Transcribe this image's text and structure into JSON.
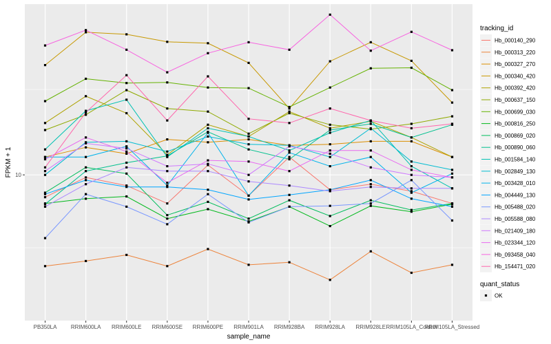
{
  "chart_data": {
    "type": "line",
    "xlabel": "sample_name",
    "ylabel": "FPKM + 1",
    "y_scale": "log",
    "yticks": [
      10
    ],
    "ylim": [
      3.2,
      38
    ],
    "grid": true,
    "legend_placement": "right",
    "categories": [
      "PB350LA",
      "RRIM600LA",
      "RRIM600LE",
      "RRIM600SE",
      "RRIM600PE",
      "RRIM901LA",
      "RRIM928BA",
      "RRIM928LA",
      "RRIM928LE",
      "RRIM105LA_Control",
      "RRIM105LA_Stressed"
    ],
    "series": [
      {
        "name": "Hb_000140_290",
        "color": "#F8766D",
        "values": [
          8.4,
          9.8,
          9.2,
          8.0,
          10.8,
          8.5,
          11.5,
          8.9,
          9.3,
          8.8,
          8.0
        ]
      },
      {
        "name": "Hb_000313_220",
        "color": "#EC8239",
        "values": [
          4.9,
          5.1,
          5.35,
          4.9,
          5.6,
          4.95,
          5.05,
          4.4,
          5.5,
          4.65,
          4.95
        ]
      },
      {
        "name": "Hb_000327_270",
        "color": "#DB8E00",
        "values": [
          11.5,
          12.4,
          11.8,
          13.2,
          12.9,
          13.2,
          12.6,
          12.7,
          13.0,
          13.0,
          11.5
        ]
      },
      {
        "name": "Hb_000340_420",
        "color": "#C79800",
        "values": [
          23.6,
          30.5,
          30.0,
          28.3,
          28.0,
          24.0,
          16.8,
          24.3,
          28.2,
          24.4,
          17.6
        ]
      },
      {
        "name": "Hb_000392_420",
        "color": "#AEA200",
        "values": [
          15.0,
          18.5,
          16.2,
          11.7,
          14.8,
          13.5,
          16.4,
          14.4,
          15.2,
          13.4,
          11.5
        ]
      },
      {
        "name": "Hb_000637_150",
        "color": "#8FAA00",
        "values": [
          14.2,
          16.0,
          19.4,
          16.8,
          16.4,
          13.8,
          16.2,
          14.8,
          14.3,
          14.9,
          15.8
        ]
      },
      {
        "name": "Hb_000699_030",
        "color": "#64B200",
        "values": [
          17.8,
          21.2,
          20.5,
          20.6,
          19.8,
          19.7,
          17.0,
          19.8,
          23.0,
          23.1,
          19.4
        ]
      },
      {
        "name": "Hb_000816_250",
        "color": "#00B81B",
        "values": [
          8.0,
          8.3,
          8.45,
          7.1,
          7.65,
          6.95,
          7.8,
          6.7,
          7.85,
          7.5,
          7.95
        ]
      },
      {
        "name": "Hb_000869_020",
        "color": "#00BD5C",
        "values": [
          8.7,
          10.6,
          10.1,
          7.3,
          8.1,
          7.1,
          8.2,
          7.25,
          8.2,
          7.6,
          8.0
        ]
      },
      {
        "name": "Hb_000890_060",
        "color": "#00C08E",
        "values": [
          7.95,
          10.3,
          11.0,
          11.6,
          14.0,
          12.2,
          11.3,
          14.2,
          14.9,
          13.4,
          14.8
        ]
      },
      {
        "name": "Hb_001584_140",
        "color": "#00C1B2",
        "values": [
          12.2,
          16.5,
          18.0,
          11.5,
          14.4,
          13.5,
          12.1,
          13.9,
          15.3,
          10.7,
          9.0
        ]
      },
      {
        "name": "Hb_002849_130",
        "color": "#00BCD1",
        "values": [
          10.0,
          12.9,
          13.0,
          12.0,
          13.5,
          12.7,
          12.6,
          11.5,
          14.4,
          11.1,
          10.4
        ]
      },
      {
        "name": "Hb_003428_010",
        "color": "#00B3EB",
        "values": [
          11.5,
          11.5,
          12.5,
          9.2,
          13.9,
          8.5,
          11.9,
          10.7,
          11.5,
          8.7,
          10.1
        ]
      },
      {
        "name": "Hb_004449_130",
        "color": "#00A5FF",
        "values": [
          8.6,
          9.6,
          9.1,
          9.1,
          8.9,
          8.25,
          8.55,
          8.9,
          9.6,
          8.3,
          7.8
        ]
      },
      {
        "name": "Hb_005488_020",
        "color": "#7997FF",
        "values": [
          6.1,
          8.6,
          7.8,
          6.8,
          8.6,
          6.9,
          7.8,
          7.85,
          8.0,
          9.6,
          7.0
        ]
      },
      {
        "name": "Hb_005588_080",
        "color": "#AC88FF",
        "values": [
          7.8,
          9.3,
          10.6,
          10.3,
          10.3,
          9.5,
          9.2,
          8.8,
          9.1,
          9.0,
          9.0
        ]
      },
      {
        "name": "Hb_021409_180",
        "color": "#CF78FF",
        "values": [
          10.3,
          12.8,
          12.3,
          10.7,
          10.9,
          10.0,
          12.5,
          11.8,
          10.6,
          10.0,
          9.8
        ]
      },
      {
        "name": "Hb_023344_120",
        "color": "#E86AF0",
        "values": [
          11.3,
          13.4,
          12.0,
          9.4,
          11.2,
          11.1,
          10.3,
          12.1,
          12.1,
          10.4,
          9.8
        ]
      },
      {
        "name": "Hb_093458_040",
        "color": "#F763E0",
        "values": [
          27.5,
          31.0,
          26.6,
          22.3,
          25.9,
          28.2,
          26.6,
          35.0,
          26.4,
          30.6,
          26.5
        ]
      },
      {
        "name": "Hb_154471_020",
        "color": "#FF65AC",
        "values": [
          10.6,
          16.3,
          21.8,
          15.3,
          21.6,
          15.5,
          15.0,
          16.8,
          15.3,
          14.4,
          14.9
        ]
      }
    ]
  },
  "legend": {
    "title": "tracking_id",
    "items": [
      "Hb_000140_290",
      "Hb_000313_220",
      "Hb_000327_270",
      "Hb_000340_420",
      "Hb_000392_420",
      "Hb_000637_150",
      "Hb_000699_030",
      "Hb_000816_250",
      "Hb_000869_020",
      "Hb_000890_060",
      "Hb_001584_140",
      "Hb_002849_130",
      "Hb_003428_010",
      "Hb_004449_130",
      "Hb_005488_020",
      "Hb_005588_080",
      "Hb_021409_180",
      "Hb_023344_120",
      "Hb_093458_040",
      "Hb_154471_020"
    ]
  },
  "shape_legend": {
    "title": "quant_status",
    "items": [
      "OK"
    ]
  },
  "colors": {
    "panel_background": "#EBEBEB",
    "grid_line": "#FFFFFF",
    "point": "#000000"
  }
}
